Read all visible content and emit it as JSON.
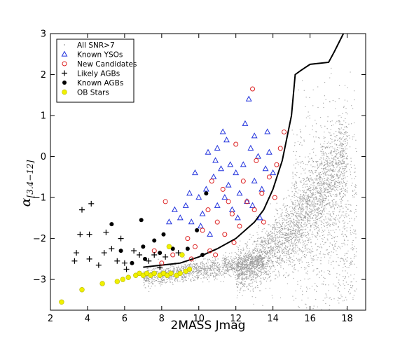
{
  "chart_data": {
    "type": "scatter",
    "xlabel": "2MASS Jmag",
    "ylabel_main": "α",
    "ylabel_sub": "[3.4−12]",
    "xlim": [
      2,
      19
    ],
    "ylim": [
      -3.75,
      3
    ],
    "xticks": [
      2,
      4,
      6,
      8,
      10,
      12,
      14,
      16,
      18
    ],
    "yticks": [
      -3,
      -2,
      -1,
      0,
      1,
      2,
      3
    ],
    "grid": false,
    "legend_position": "top-left",
    "legend": [
      {
        "label": "All SNR>7",
        "marker": "dot",
        "color": "#999999"
      },
      {
        "label": "Known YSOs",
        "marker": "triangle",
        "color": "#2233dd"
      },
      {
        "label": "New Candidates",
        "marker": "circle-open",
        "color": "#dd2222"
      },
      {
        "label": "Likely AGBs",
        "marker": "plus",
        "color": "#000000"
      },
      {
        "label": "Known AGBs",
        "marker": "circle-filled",
        "color": "#000000"
      },
      {
        "label": "OB Stars",
        "marker": "circle-yellow",
        "color": "#f0f000"
      }
    ],
    "selection_line": {
      "x": [
        7.0,
        8.0,
        9.0,
        10.0,
        11.0,
        12.0,
        13.0,
        13.5,
        14.0,
        14.5,
        15.0,
        15.2,
        15.5,
        16.0,
        17.0,
        17.3,
        17.8
      ],
      "y": [
        -2.7,
        -2.65,
        -2.6,
        -2.45,
        -2.25,
        -2.0,
        -1.6,
        -1.3,
        -0.8,
        -0.1,
        1.0,
        2.0,
        2.1,
        2.25,
        2.3,
        2.55,
        3.0
      ]
    },
    "series": [
      {
        "name": "Known YSOs",
        "points": [
          [
            9.0,
            -1.5
          ],
          [
            9.3,
            -1.2
          ],
          [
            9.6,
            -1.6
          ],
          [
            10.0,
            -1.0
          ],
          [
            10.2,
            -1.4
          ],
          [
            10.4,
            -0.8
          ],
          [
            10.6,
            -1.9
          ],
          [
            10.8,
            -0.5
          ],
          [
            11.0,
            -1.2
          ],
          [
            11.2,
            -0.3
          ],
          [
            11.4,
            -1.0
          ],
          [
            11.6,
            -0.7
          ],
          [
            11.8,
            -1.3
          ],
          [
            12.0,
            -0.4
          ],
          [
            12.2,
            -0.9
          ],
          [
            12.4,
            -0.2
          ],
          [
            12.6,
            -1.1
          ],
          [
            12.8,
            0.2
          ],
          [
            13.0,
            -0.6
          ],
          [
            13.2,
            0.0
          ],
          [
            13.4,
            -0.8
          ],
          [
            13.6,
            -0.3
          ],
          [
            13.8,
            0.1
          ],
          [
            14.0,
            -0.4
          ],
          [
            11.5,
            0.4
          ],
          [
            12.5,
            0.8
          ],
          [
            13.0,
            0.5
          ],
          [
            11.0,
            0.2
          ],
          [
            10.5,
            0.1
          ],
          [
            9.8,
            -0.4
          ],
          [
            9.5,
            -0.9
          ],
          [
            8.7,
            -1.3
          ],
          [
            8.4,
            -1.6
          ],
          [
            10.1,
            -1.7
          ],
          [
            12.1,
            -1.5
          ],
          [
            12.9,
            -1.2
          ],
          [
            13.3,
            -1.5
          ],
          [
            10.9,
            -0.1
          ],
          [
            11.7,
            -0.2
          ],
          [
            12.7,
            1.4
          ],
          [
            11.3,
            0.6
          ],
          [
            13.7,
            0.6
          ]
        ]
      },
      {
        "name": "New Candidates",
        "points": [
          [
            9.4,
            -2.0
          ],
          [
            9.8,
            -2.2
          ],
          [
            10.2,
            -1.8
          ],
          [
            10.6,
            -2.3
          ],
          [
            11.0,
            -1.6
          ],
          [
            11.4,
            -1.9
          ],
          [
            11.8,
            -1.4
          ],
          [
            12.2,
            -1.7
          ],
          [
            12.6,
            -1.1
          ],
          [
            13.0,
            -1.3
          ],
          [
            13.4,
            -0.9
          ],
          [
            13.8,
            -0.5
          ],
          [
            14.2,
            -0.2
          ],
          [
            14.4,
            0.2
          ],
          [
            14.6,
            0.6
          ],
          [
            12.9,
            1.65
          ],
          [
            8.2,
            -1.1
          ],
          [
            8.6,
            -2.4
          ],
          [
            10.5,
            -1.3
          ],
          [
            11.3,
            -0.8
          ],
          [
            12.4,
            -0.6
          ],
          [
            13.1,
            -0.1
          ],
          [
            11.9,
            -2.1
          ],
          [
            10.9,
            -2.4
          ],
          [
            9.6,
            -2.5
          ],
          [
            7.6,
            -2.3
          ],
          [
            8.0,
            -2.6
          ],
          [
            13.5,
            -1.6
          ],
          [
            12.0,
            0.3
          ],
          [
            10.7,
            -0.6
          ],
          [
            14.1,
            -1.0
          ],
          [
            11.6,
            -1.1
          ]
        ]
      },
      {
        "name": "Likely AGBs",
        "points": [
          [
            3.7,
            -1.3
          ],
          [
            4.2,
            -1.15
          ],
          [
            3.6,
            -1.9
          ],
          [
            4.1,
            -1.9
          ],
          [
            3.4,
            -2.35
          ],
          [
            3.3,
            -2.55
          ],
          [
            4.1,
            -2.5
          ],
          [
            5.0,
            -1.85
          ],
          [
            5.3,
            -2.25
          ],
          [
            5.8,
            -2.0
          ],
          [
            4.9,
            -2.35
          ],
          [
            4.6,
            -2.65
          ],
          [
            5.6,
            -2.55
          ],
          [
            6.1,
            -2.75
          ],
          [
            6.8,
            -2.4
          ],
          [
            7.3,
            -2.55
          ],
          [
            7.9,
            -2.7
          ],
          [
            6.5,
            -2.3
          ],
          [
            7.6,
            -2.4
          ],
          [
            8.2,
            -2.45
          ],
          [
            8.9,
            -2.35
          ],
          [
            6.0,
            -2.6
          ]
        ]
      },
      {
        "name": "Known AGBs",
        "points": [
          [
            5.3,
            -1.65
          ],
          [
            5.8,
            -2.3
          ],
          [
            6.9,
            -1.55
          ],
          [
            7.0,
            -2.2
          ],
          [
            7.1,
            -2.5
          ],
          [
            7.6,
            -2.05
          ],
          [
            7.9,
            -2.35
          ],
          [
            8.1,
            -1.9
          ],
          [
            8.6,
            -2.25
          ],
          [
            9.4,
            -2.25
          ],
          [
            9.9,
            -1.8
          ],
          [
            10.4,
            -0.9
          ],
          [
            6.4,
            -2.6
          ],
          [
            10.2,
            -2.4
          ]
        ]
      },
      {
        "name": "OB Stars",
        "points": [
          [
            2.6,
            -3.55
          ],
          [
            3.7,
            -3.25
          ],
          [
            4.8,
            -3.1
          ],
          [
            5.6,
            -3.05
          ],
          [
            6.2,
            -2.95
          ],
          [
            6.6,
            -2.9
          ],
          [
            6.8,
            -2.85
          ],
          [
            7.0,
            -2.9
          ],
          [
            7.2,
            -2.85
          ],
          [
            7.4,
            -2.9
          ],
          [
            7.6,
            -2.85
          ],
          [
            7.9,
            -2.9
          ],
          [
            8.1,
            -2.85
          ],
          [
            8.3,
            -2.9
          ],
          [
            8.5,
            -2.85
          ],
          [
            8.8,
            -2.9
          ],
          [
            9.0,
            -2.85
          ],
          [
            9.3,
            -2.8
          ],
          [
            9.5,
            -2.75
          ],
          [
            8.4,
            -2.2
          ],
          [
            9.1,
            -2.4
          ],
          [
            5.9,
            -3.0
          ]
        ]
      }
    ]
  }
}
